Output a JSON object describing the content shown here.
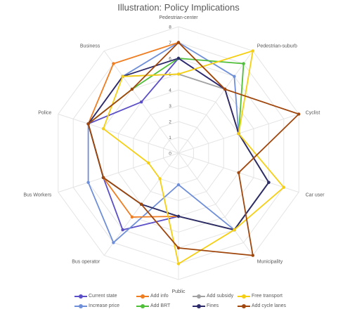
{
  "chart_data": {
    "type": "radar",
    "title": "Illustration: Policy Implications",
    "categories": [
      "Pedestrian-center",
      "Pedestrian-suburb",
      "Cyclist",
      "Car user",
      "Municipality",
      "Public",
      "Bus operator",
      "Bus Workers",
      "Police",
      "Business"
    ],
    "rlim": [
      0,
      8
    ],
    "ticks": [
      "0",
      "1",
      "2",
      "3",
      "4",
      "5",
      "6",
      "7",
      "8"
    ],
    "grid": true,
    "legend_position": "bottom",
    "series": [
      {
        "name": "Current state",
        "color": "#5b4fc8",
        "values": [
          6,
          5,
          4,
          6,
          6,
          4,
          6,
          5,
          6,
          4
        ]
      },
      {
        "name": "Increase price",
        "color": "#6f8fd8",
        "values": [
          7,
          6,
          4,
          6,
          6,
          2,
          7,
          6,
          6,
          6
        ]
      },
      {
        "name": "Add info",
        "color": "#ef7d22",
        "values": [
          7,
          5,
          4,
          6,
          6,
          4,
          5,
          5,
          6,
          7
        ]
      },
      {
        "name": "Add BRT",
        "color": "#4fbf3a",
        "values": [
          6,
          7,
          4,
          6,
          6,
          4,
          4,
          5,
          6,
          5
        ]
      },
      {
        "name": "Add subsidy",
        "color": "#a3a3a3",
        "values": [
          5,
          5,
          4,
          6,
          6,
          4,
          4,
          5,
          6,
          6
        ]
      },
      {
        "name": "Fines",
        "color": "#2d2a6b",
        "values": [
          6,
          5,
          4,
          6,
          6,
          4,
          4,
          5,
          6,
          6
        ]
      },
      {
        "name": "Free transport",
        "color": "#f5cf14",
        "values": [
          5,
          8,
          4,
          7,
          6,
          7,
          2,
          2,
          5,
          6
        ]
      },
      {
        "name": "Add cycle lanes",
        "color": "#a0470d",
        "values": [
          7,
          5,
          8,
          4,
          8,
          6,
          4,
          5,
          6,
          5
        ]
      }
    ]
  }
}
